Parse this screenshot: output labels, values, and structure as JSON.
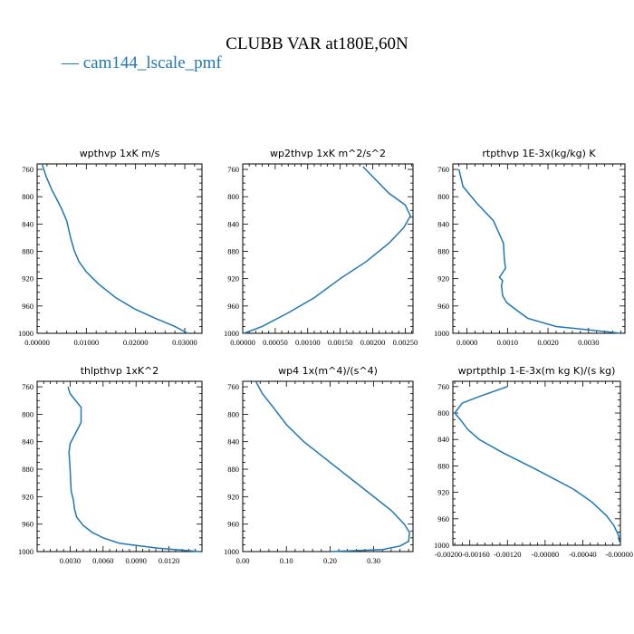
{
  "figure": {
    "title": "CLUBB VAR at180E,60N",
    "legend": {
      "label": "— cam144_lscale_pmf",
      "color": "#1f77b4"
    }
  },
  "chart_data": [
    {
      "type": "line",
      "title": "wpthvp   1xK m/s",
      "series": [
        {
          "name": "cam144_lscale_pmf",
          "color": "#1f77b4",
          "x": [
            0.0306,
            0.028,
            0.024,
            0.02,
            0.016,
            0.0125,
            0.01,
            0.0085,
            0.0075,
            0.0068,
            0.006,
            0.0048,
            0.003,
            0.0018,
            0.001
          ],
          "y": [
            1000,
            990,
            978,
            965,
            948,
            928,
            910,
            895,
            878,
            860,
            835,
            815,
            790,
            770,
            752
          ]
        }
      ],
      "xlim": [
        0,
        0.0335
      ],
      "ylim": [
        1000,
        752
      ],
      "xticks": [
        0,
        0.01,
        0.02,
        0.03
      ],
      "xtick_labels": [
        "0.00000",
        "0.01000",
        "0.02000",
        "0.03000"
      ],
      "yticks": [
        760,
        800,
        840,
        880,
        920,
        960,
        1000
      ],
      "ytick_labels": [
        "760",
        "800",
        "840",
        "880",
        "920",
        "960",
        "1000"
      ]
    },
    {
      "type": "line",
      "title": "wp2thvp   1xK m^2/s^2",
      "series": [
        {
          "name": "cam144_lscale_pmf",
          "color": "#1f77b4",
          "x": [
            2e-05,
            0.0003,
            0.0007,
            0.0011,
            0.0015,
            0.0019,
            0.00225,
            0.00248,
            0.00258,
            0.0025,
            0.00225,
            0.00185
          ],
          "y": [
            1000,
            990,
            970,
            948,
            920,
            895,
            868,
            845,
            828,
            812,
            795,
            756
          ]
        }
      ],
      "xlim": [
        0,
        0.00262
      ],
      "ylim": [
        1000,
        752
      ],
      "xticks": [
        0,
        0.0005,
        0.001,
        0.0015,
        0.002,
        0.0025
      ],
      "xtick_labels": [
        "0.00000",
        "0.00050",
        "0.00100",
        "0.00150",
        "0.00200",
        "0.00250"
      ],
      "yticks": [
        760,
        800,
        840,
        880,
        920,
        960,
        1000
      ],
      "ytick_labels": [
        "760",
        "800",
        "840",
        "880",
        "920",
        "960",
        "1000"
      ]
    },
    {
      "type": "line",
      "title": "rtpthvp   1E-3x(kg/kg) K",
      "series": [
        {
          "name": "cam144_lscale_pmf",
          "color": "#1f77b4",
          "x": [
            0.0038,
            0.0022,
            0.0015,
            0.0012,
            0.00098,
            0.00088,
            0.00085,
            0.00088,
            0.0008,
            0.00095,
            0.00092,
            0.0009,
            0.00065,
            0.00025,
            -0.0001,
            -0.0002
          ],
          "y": [
            1000,
            990,
            978,
            965,
            955,
            945,
            930,
            923,
            918,
            905,
            890,
            868,
            835,
            810,
            785,
            760
          ]
        }
      ],
      "xlim": [
        -0.00035,
        0.0039
      ],
      "ylim": [
        1000,
        752
      ],
      "xticks": [
        0,
        0.001,
        0.002,
        0.003
      ],
      "xtick_labels": [
        "0.0000",
        "0.0010",
        "0.0020",
        "0.0030"
      ],
      "yticks": [
        760,
        800,
        840,
        880,
        920,
        960,
        1000
      ],
      "ytick_labels": [
        "760",
        "800",
        "840",
        "880",
        "920",
        "960",
        "1000"
      ]
    },
    {
      "type": "line",
      "title": "thlpthvp   1xK^2",
      "series": [
        {
          "name": "cam144_lscale_pmf",
          "color": "#1f77b4",
          "x": [
            0.0148,
            0.011,
            0.0075,
            0.006,
            0.005,
            0.0042,
            0.0036,
            0.0034,
            0.0033,
            0.0031,
            0.003,
            0.0029,
            0.003,
            0.004,
            0.004,
            0.003,
            0.0028
          ],
          "y": [
            1000,
            995,
            988,
            980,
            972,
            962,
            950,
            938,
            925,
            912,
            880,
            855,
            843,
            812,
            790,
            770,
            760
          ]
        }
      ],
      "xlim": [
        0,
        0.015
      ],
      "ylim": [
        1000,
        752
      ],
      "xticks": [
        0.003,
        0.006,
        0.009,
        0.012
      ],
      "xtick_labels": [
        "0.0030",
        "0.0060",
        "0.0090",
        "0.0120"
      ],
      "yticks": [
        760,
        800,
        840,
        880,
        920,
        960,
        1000
      ],
      "ytick_labels": [
        "760",
        "800",
        "840",
        "880",
        "920",
        "960",
        "1000"
      ]
    },
    {
      "type": "line",
      "title": "wp4   1x(m^4)/(s^4)",
      "series": [
        {
          "name": "cam144_lscale_pmf",
          "color": "#1f77b4",
          "x": [
            0.2,
            0.32,
            0.36,
            0.38,
            0.382,
            0.37,
            0.34,
            0.3,
            0.25,
            0.19,
            0.14,
            0.1,
            0.07,
            0.045,
            0.03
          ],
          "y": [
            1000,
            997,
            992,
            985,
            972,
            960,
            940,
            920,
            895,
            865,
            840,
            815,
            790,
            770,
            752
          ]
        }
      ],
      "xlim": [
        0,
        0.39
      ],
      "ylim": [
        1000,
        752
      ],
      "xticks": [
        0,
        0.1,
        0.2,
        0.3
      ],
      "xtick_labels": [
        "0.00",
        "0.10",
        "0.20",
        "0.30"
      ],
      "yticks": [
        760,
        800,
        840,
        880,
        920,
        960,
        1000
      ],
      "ytick_labels": [
        "760",
        "800",
        "840",
        "880",
        "920",
        "960",
        "1000"
      ]
    },
    {
      "type": "line",
      "title": "wprtpthlp   1-E-3x(m kg K)/(s kg)",
      "series": [
        {
          "name": "cam144_lscale_pmf",
          "color": "#1f77b4",
          "x": [
            -1e-05,
            -2e-05,
            -7e-05,
            -0.00015,
            -0.0003,
            -0.0005,
            -0.0009,
            -0.00125,
            -0.0015,
            -0.00162,
            -0.0017,
            -0.00176,
            -0.00168,
            -0.0015,
            -0.0012
          ],
          "y": [
            995,
            985,
            970,
            955,
            935,
            915,
            885,
            860,
            840,
            825,
            810,
            800,
            785,
            775,
            760
          ]
        }
      ],
      "xlim": [
        -0.00178,
        0
      ],
      "ylim": [
        1000,
        752
      ],
      "xticks": [
        -0.0016,
        -0.0012,
        -0.0008,
        -0.0004,
        0
      ],
      "xtick_labels": [
        "-0.00200-0.00160",
        "-0.00120",
        "-0.00080",
        "-0.00040",
        "-0.00000"
      ],
      "yticks": [
        760,
        800,
        840,
        880,
        920,
        960,
        1000
      ],
      "ytick_labels": [
        "760",
        "800",
        "840",
        "880",
        "920",
        "960",
        "1000"
      ]
    }
  ]
}
